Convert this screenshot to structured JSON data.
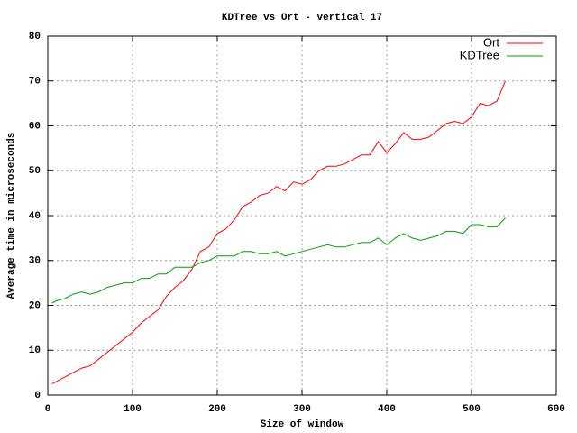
{
  "chart_data": {
    "type": "line",
    "title": "KDTree vs Ort - vertical 17",
    "x_label": "Size of window",
    "y_label": "Average time in microseconds",
    "x": [
      5,
      10,
      20,
      30,
      40,
      50,
      60,
      70,
      80,
      90,
      100,
      110,
      120,
      130,
      140,
      150,
      160,
      170,
      180,
      190,
      200,
      210,
      220,
      230,
      240,
      250,
      260,
      270,
      280,
      290,
      300,
      310,
      320,
      330,
      340,
      350,
      360,
      370,
      380,
      390,
      400,
      410,
      420,
      430,
      440,
      450,
      460,
      470,
      480,
      490,
      500,
      510,
      520,
      530,
      540
    ],
    "series": [
      {
        "name": "Ort",
        "color": "#ff0000",
        "values": [
          2.5,
          3,
          4,
          5,
          6,
          6.5,
          8,
          9.5,
          11,
          12.5,
          14,
          16,
          17.5,
          19,
          22,
          24,
          25.5,
          28,
          32,
          33,
          36,
          37,
          39,
          42,
          43,
          44.5,
          45,
          46.5,
          45.5,
          47.5,
          47,
          48,
          50,
          51,
          51,
          51.5,
          52.5,
          53.5,
          53.5,
          56.5,
          54,
          56,
          58.5,
          57,
          57,
          57.5,
          59,
          60.5,
          61,
          60.5,
          62,
          65,
          64.5,
          65.5,
          70
        ]
      },
      {
        "name": "KDTree",
        "color": "#00a000",
        "values": [
          20.5,
          21,
          21.5,
          22.5,
          23,
          22.5,
          23,
          24,
          24.5,
          25,
          25,
          26,
          26,
          27,
          27,
          28.5,
          28.5,
          28.5,
          29.5,
          30,
          31,
          31,
          31,
          32,
          32,
          31.5,
          31.5,
          32,
          31,
          31.5,
          32,
          32.5,
          33,
          33.5,
          33,
          33,
          33.5,
          34,
          34,
          35,
          33.5,
          35,
          36,
          35,
          34.5,
          35,
          35.5,
          36.5,
          36.5,
          36,
          38,
          38,
          37.5,
          37.5,
          39.5
        ]
      }
    ],
    "xlim": [
      0,
      600
    ],
    "xticks": [
      0,
      100,
      200,
      300,
      400,
      500,
      600
    ],
    "ylim": [
      0,
      80
    ],
    "yticks": [
      0,
      10,
      20,
      30,
      40,
      50,
      60,
      70,
      80
    ],
    "grid": true,
    "legend": "top-right"
  }
}
